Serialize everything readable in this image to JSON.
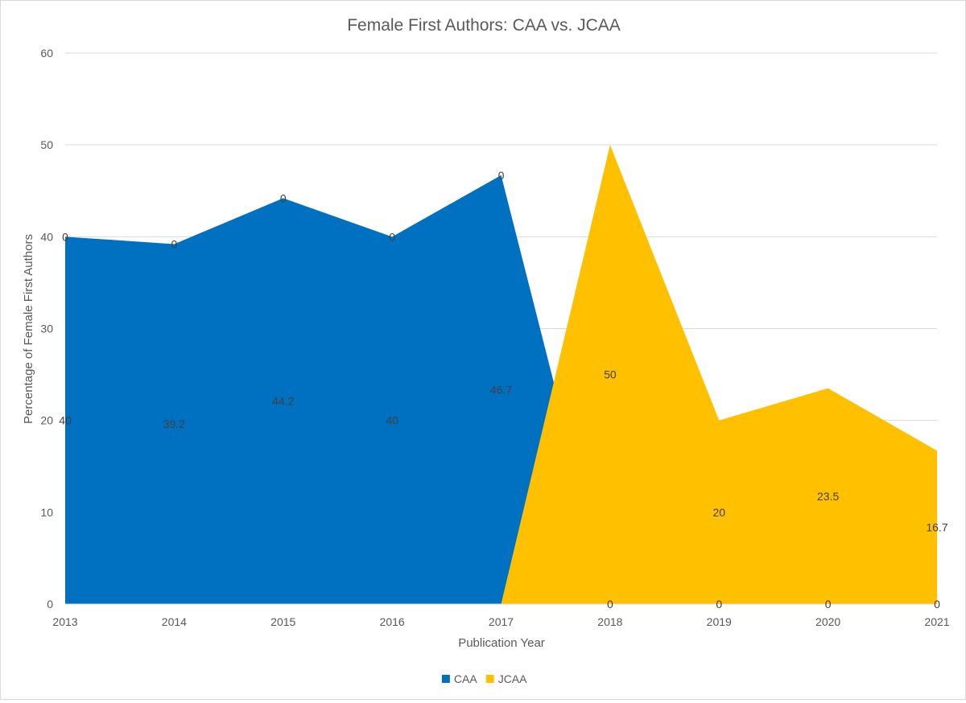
{
  "chart_data": {
    "type": "area",
    "title": "Female First Authors: CAA vs. JCAA",
    "xlabel": "Publication Year",
    "ylabel": "Percentage of Female First Authors",
    "ylim": [
      0,
      60
    ],
    "yticks": [
      0,
      10,
      20,
      30,
      40,
      50,
      60
    ],
    "grid": true,
    "legend": "bottom-center",
    "categories": [
      "2013",
      "2014",
      "2015",
      "2016",
      "2017",
      "2018",
      "2019",
      "2020",
      "2021"
    ],
    "series": [
      {
        "name": "CAA",
        "color": "#0070c0",
        "values": [
          40,
          39.2,
          44.2,
          40,
          46.7,
          0,
          0,
          0,
          0
        ]
      },
      {
        "name": "JCAA",
        "color": "#ffc000",
        "values": [
          0,
          0,
          0,
          0,
          0,
          50,
          20,
          23.5,
          16.7
        ]
      }
    ]
  }
}
